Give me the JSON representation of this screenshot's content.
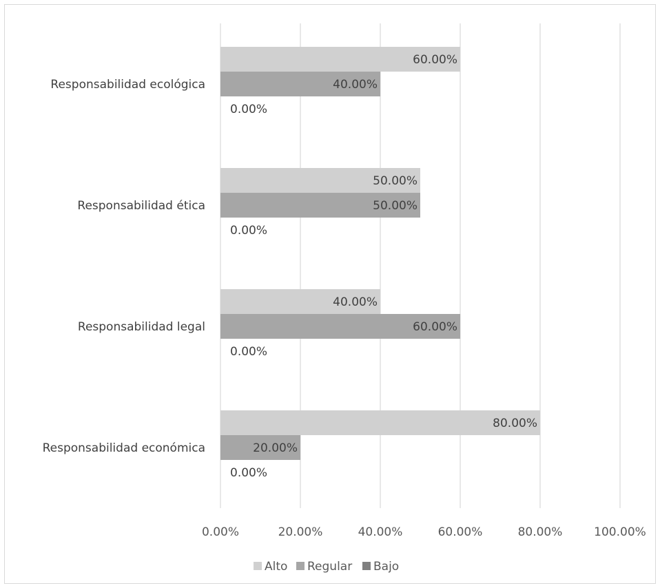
{
  "chart_data": {
    "type": "bar",
    "orientation": "horizontal",
    "categories": [
      "Responsabilidad ecológica",
      "Responsabilidad ética",
      "Responsabilidad legal",
      "Responsabilidad económica"
    ],
    "series": [
      {
        "name": "Alto",
        "values": [
          60,
          50,
          40,
          80
        ],
        "labels": [
          "60.00%",
          "50.00%",
          "40.00%",
          "80.00%"
        ],
        "color": "#d0d0d0"
      },
      {
        "name": "Regular",
        "values": [
          40,
          50,
          60,
          20
        ],
        "labels": [
          "40.00%",
          "50.00%",
          "60.00%",
          "20.00%"
        ],
        "color": "#a6a6a6"
      },
      {
        "name": "Bajo",
        "values": [
          0,
          0,
          0,
          0
        ],
        "labels": [
          "0.00%",
          "0.00%",
          "0.00%",
          "0.00%"
        ],
        "color": "#808080"
      }
    ],
    "xlim": [
      0,
      100
    ],
    "xticks": [
      0,
      20,
      40,
      60,
      80,
      100
    ],
    "xtick_labels": [
      "0.00%",
      "20.00%",
      "40.00%",
      "60.00%",
      "80.00%",
      "100.00%"
    ],
    "grid": true,
    "legend_position": "bottom",
    "gridline_color": "#d9d9d9"
  }
}
